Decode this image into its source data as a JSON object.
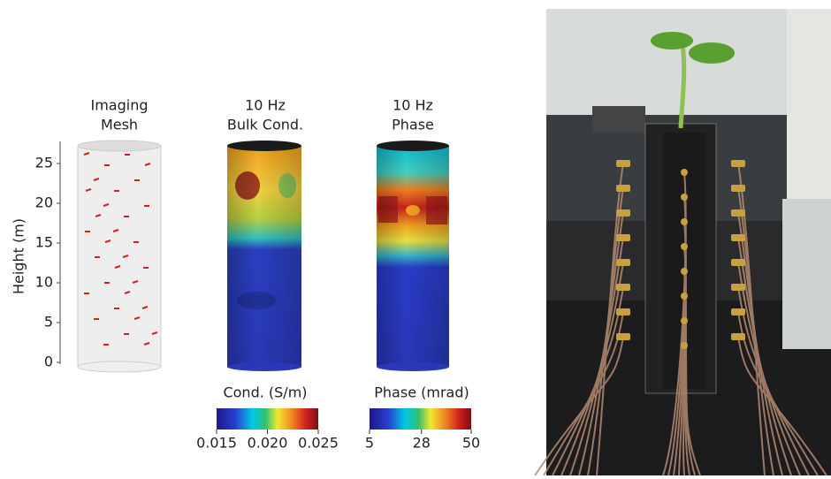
{
  "y_axis": {
    "label": "Height (m)",
    "lim": [
      0,
      28
    ],
    "ticks": [
      0,
      5,
      10,
      15,
      20,
      25
    ]
  },
  "panels": [
    {
      "title": [
        "Imaging",
        "Mesh"
      ]
    },
    {
      "title": [
        "10 Hz",
        "Bulk Cond."
      ]
    },
    {
      "title": [
        "10 Hz",
        "Phase"
      ]
    }
  ],
  "colorbars": [
    {
      "label": "Cond. (S/m)",
      "lim": [
        0.015,
        0.025
      ],
      "ticks": [
        {
          "value": 0.015,
          "label": "0.015"
        },
        {
          "value": 0.02,
          "label": "0.020"
        },
        {
          "value": 0.025,
          "label": "0.025"
        }
      ]
    },
    {
      "label": "Phase (mrad)",
      "lim": [
        5,
        50
      ],
      "ticks": [
        5,
        28,
        50
      ]
    }
  ]
}
